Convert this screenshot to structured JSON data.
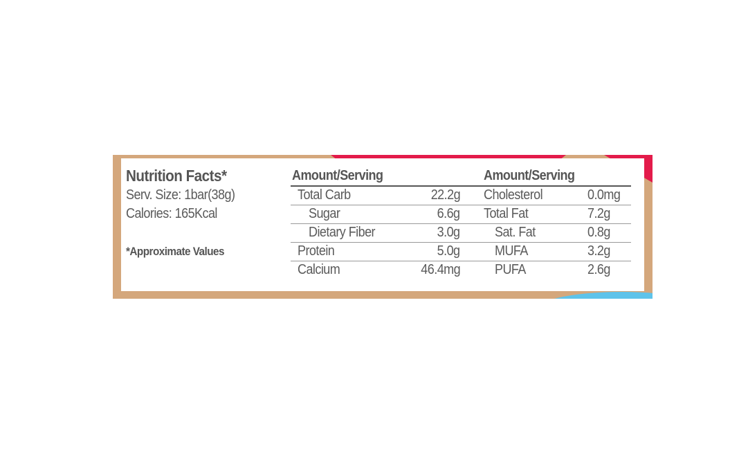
{
  "title": "Nutrition Facts*",
  "serving_size": "Serv. Size: 1bar(38g)",
  "calories": "Calories: 165Kcal",
  "footnote": "*Approximate Values",
  "col_header": "Amount/Serving",
  "left_rows": [
    {
      "label": "Total Carb",
      "value": "22.2g"
    },
    {
      "label": "Sugar",
      "value": "6.6g"
    },
    {
      "label": "Dietary Fiber",
      "value": "3.0g"
    },
    {
      "label": "Protein",
      "value": "5.0g"
    },
    {
      "label": "Calcium",
      "value": "46.4mg"
    }
  ],
  "right_rows": [
    {
      "label": "Cholesterol",
      "value": "0.0mg"
    },
    {
      "label": "Total Fat",
      "value": "7.2g"
    },
    {
      "label": "Sat. Fat",
      "value": "0.8g"
    },
    {
      "label": "MUFA",
      "value": "3.2g"
    },
    {
      "label": "PUFA",
      "value": "2.6g"
    }
  ]
}
